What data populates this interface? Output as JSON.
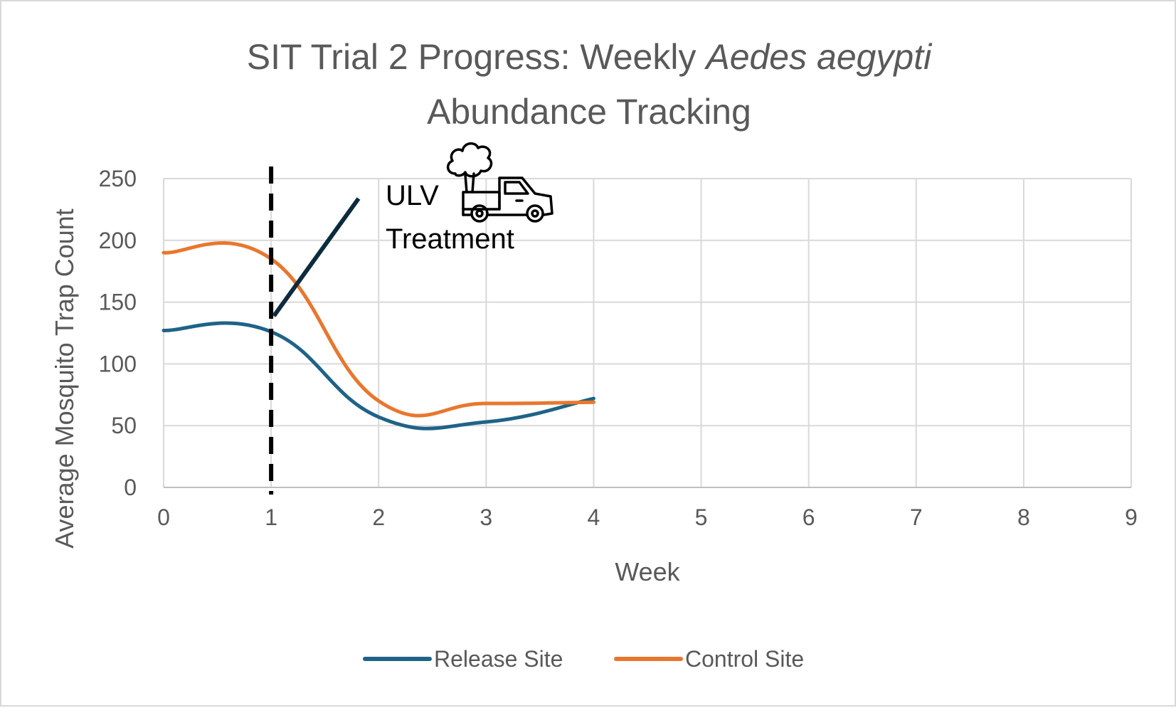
{
  "chart_data": {
    "type": "line",
    "title_part1": "SIT Trial 2 Progress:  Weekly ",
    "title_italic": "Aedes aegypti",
    "title_line2": "Abundance Tracking",
    "xlabel": "Week",
    "ylabel": "Average Mosquito Trap Count",
    "xlim": [
      0,
      9
    ],
    "ylim": [
      0,
      250
    ],
    "xticks": [
      "0",
      "1",
      "2",
      "3",
      "4",
      "5",
      "6",
      "7",
      "8",
      "9"
    ],
    "yticks": [
      "0",
      "50",
      "100",
      "150",
      "200",
      "250"
    ],
    "grid": true,
    "legend_position": "bottom",
    "series": [
      {
        "name": "Release Site",
        "color": "#1f6387",
        "x": [
          0,
          1,
          2,
          3,
          4
        ],
        "y": [
          127,
          126,
          57,
          53,
          72
        ]
      },
      {
        "name": "Control Site",
        "color": "#e8772e",
        "x": [
          0,
          1,
          2,
          3,
          4
        ],
        "y": [
          190,
          185,
          70,
          68,
          69
        ]
      }
    ],
    "annotations": {
      "marker_week": 1,
      "label_line1": "ULV",
      "label_line2": "Treatment",
      "icon": "truck-fogger-icon"
    }
  }
}
